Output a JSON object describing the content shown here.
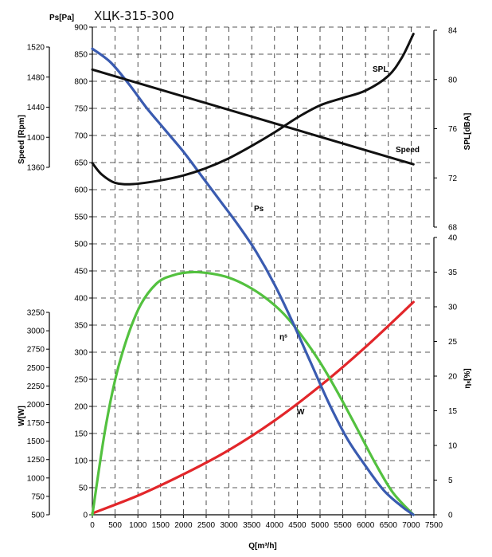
{
  "chart_data": {
    "type": "line",
    "title": "ХЦК-315-300",
    "xlabel": "Q[m³/h]",
    "xlim": [
      0,
      7500
    ],
    "x_ticks": [
      "0",
      "500",
      "1000",
      "1500",
      "2000",
      "2500",
      "3000",
      "3500",
      "4000",
      "4500",
      "5000",
      "5500",
      "6000",
      "6500",
      "7000",
      "7500"
    ],
    "axes": {
      "ps": {
        "label": "Ps[Pa]",
        "range": [
          0,
          900
        ],
        "ticks": [
          "0",
          "50",
          "100",
          "150",
          "200",
          "250",
          "300",
          "350",
          "400",
          "450",
          "500",
          "550",
          "600",
          "650",
          "700",
          "750",
          "800",
          "850",
          "900"
        ]
      },
      "speed": {
        "label": "Speed [Rpm]",
        "range": [
          1320,
          1560
        ],
        "ticks": [
          "1360",
          "1400",
          "1440",
          "1480",
          "1520"
        ]
      },
      "power": {
        "label": "W[W]",
        "range": [
          500,
          3750
        ],
        "ticks": [
          "500",
          "750",
          "1000",
          "1250",
          "1500",
          "1750",
          "2000",
          "2250",
          "2500",
          "2750",
          "3000",
          "3250"
        ]
      },
      "spl": {
        "label": "SPL[dBA]",
        "range": [
          68,
          84
        ],
        "ticks": [
          "68",
          "72",
          "76",
          "80",
          "84"
        ]
      },
      "eff": {
        "label": "ηₛ[%]",
        "range": [
          0,
          40
        ],
        "ticks": [
          "0",
          "5",
          "10",
          "15",
          "20",
          "25",
          "30",
          "35",
          "40"
        ]
      }
    },
    "series": [
      {
        "name": "Ps",
        "label": "Ps",
        "axis": "ps",
        "color": "#3a5bb0",
        "x": [
          0,
          400,
          800,
          1200,
          1600,
          2000,
          2400,
          2800,
          3200,
          3600,
          4000,
          4400,
          4800,
          5200,
          5600,
          6000,
          6400,
          6800,
          7050
        ],
        "y": [
          860,
          835,
          795,
          750,
          710,
          670,
          625,
          580,
          535,
          485,
          425,
          355,
          280,
          205,
          140,
          90,
          45,
          15,
          0
        ]
      },
      {
        "name": "Speed",
        "label": "Speed",
        "axis": "speed",
        "color": "#111111",
        "x": [
          0,
          7050
        ],
        "y": [
          1490,
          1364
        ]
      },
      {
        "name": "SPL",
        "label": "SPL",
        "axis": "spl",
        "color": "#111111",
        "x": [
          0,
          200,
          500,
          900,
          1500,
          2000,
          2500,
          3000,
          3500,
          4000,
          4500,
          5000,
          5500,
          6000,
          6500,
          6800,
          7050
        ],
        "y": [
          73.2,
          72.3,
          71.6,
          71.5,
          71.8,
          72.2,
          72.8,
          73.6,
          74.6,
          75.7,
          76.9,
          77.9,
          78.5,
          79.1,
          80.3,
          81.8,
          83.7
        ]
      },
      {
        "name": "Efficiency",
        "label": "ηˢ",
        "axis": "eff",
        "color": "#53c13f",
        "x": [
          0,
          300,
          600,
          1000,
          1400,
          1800,
          2200,
          2600,
          3000,
          3400,
          3800,
          4200,
          4600,
          5000,
          5400,
          5800,
          6200,
          6600,
          7050
        ],
        "y": [
          0,
          13,
          22,
          29.5,
          33.3,
          34.6,
          35,
          34.8,
          34.2,
          33,
          31.3,
          29,
          25.8,
          22,
          17.5,
          12.6,
          7.6,
          3.2,
          0
        ]
      },
      {
        "name": "Power",
        "label": "W",
        "axis": "power",
        "color": "#e2262a",
        "x": [
          0,
          1000,
          2000,
          3000,
          4000,
          5000,
          6000,
          7050
        ],
        "y": [
          520,
          760,
          1050,
          1380,
          1780,
          2250,
          2780,
          3390
        ]
      }
    ],
    "grid": true
  }
}
